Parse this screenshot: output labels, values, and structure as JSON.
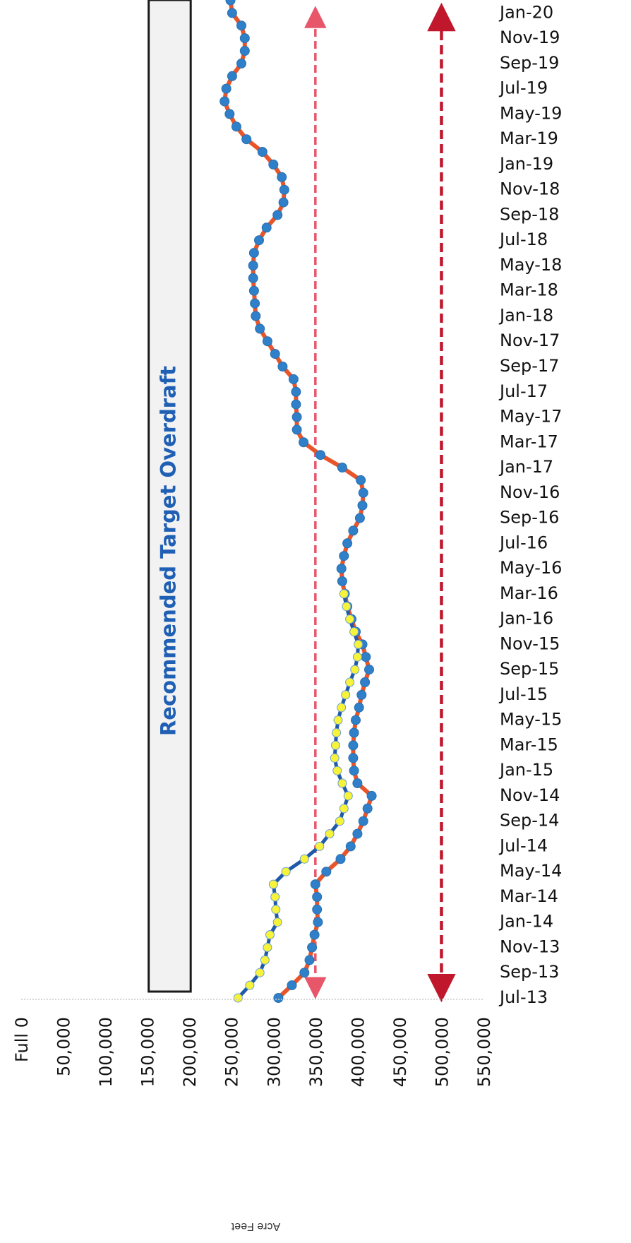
{
  "chart_data": {
    "type": "line",
    "orientation": "rotated-90",
    "ylabel": "Acre Feet",
    "value_ticks": [
      "Full   0",
      "50,000",
      "100,000",
      "150,000",
      "200,000",
      "250,000",
      "300,000",
      "350,000",
      "400,000",
      "450,000",
      "500,000",
      "550,000"
    ],
    "value_range": [
      0,
      550000
    ],
    "date_ticks": [
      "Jul-13",
      "Sep-13",
      "Nov-13",
      "Jan-14",
      "Mar-14",
      "May-14",
      "Jul-14",
      "Sep-14",
      "Nov-14",
      "Jan-15",
      "Mar-15",
      "May-15",
      "Jul-15",
      "Sep-15",
      "Nov-15",
      "Jan-16",
      "Mar-16",
      "May-16",
      "Jul-16",
      "Sep-16",
      "Nov-16",
      "Jan-17",
      "Mar-17",
      "May-17",
      "Jul-17",
      "Sep-17",
      "Nov-17",
      "Jan-18",
      "Mar-18",
      "May-18",
      "Jul-18",
      "Sep-18",
      "Nov-18",
      "Jan-19",
      "Mar-19",
      "May-19",
      "Jul-19",
      "Sep-19",
      "Nov-19",
      "Jan-20"
    ],
    "band": {
      "label": "Recommended Target Overdraft",
      "range": [
        150000,
        200000
      ],
      "fill": "#f2f2f2",
      "label_color": "#1f5fb4"
    },
    "reference_lines": [
      {
        "value": 350000,
        "color": "#e8566a",
        "style": "dashed-double-arrow"
      },
      {
        "value": 500000,
        "color": "#c0172d",
        "style": "dashed-double-arrow"
      }
    ],
    "series": [
      {
        "color": "#e8552a",
        "marker_color": "#2f80c8",
        "points": [
          [
            "Jul-13",
            306000
          ],
          [
            "Aug-13",
            322000
          ],
          [
            "Sep-13",
            337000
          ],
          [
            "Oct-13",
            343000
          ],
          [
            "Nov-13",
            346000
          ],
          [
            "Dec-13",
            349000
          ],
          [
            "Jan-14",
            353000
          ],
          [
            "Feb-14",
            352000
          ],
          [
            "Mar-14",
            352000
          ],
          [
            "Apr-14",
            350000
          ],
          [
            "May-14",
            363000
          ],
          [
            "Jun-14",
            380000
          ],
          [
            "Jul-14",
            392000
          ],
          [
            "Aug-14",
            400000
          ],
          [
            "Sep-14",
            407000
          ],
          [
            "Oct-14",
            412000
          ],
          [
            "Nov-14",
            417000
          ],
          [
            "Dec-14",
            400000
          ],
          [
            "Jan-15",
            396000
          ],
          [
            "Feb-15",
            395000
          ],
          [
            "Mar-15",
            395000
          ],
          [
            "Apr-15",
            396000
          ],
          [
            "May-15",
            398000
          ],
          [
            "Jun-15",
            402000
          ],
          [
            "Jul-15",
            405000
          ],
          [
            "Aug-15",
            409000
          ],
          [
            "Sep-15",
            414000
          ],
          [
            "Oct-15",
            410000
          ],
          [
            "Nov-15",
            406000
          ],
          [
            "Dec-15",
            398000
          ],
          [
            "Jan-16",
            393000
          ],
          [
            "Feb-16",
            388000
          ],
          [
            "Mar-16",
            385000
          ],
          [
            "Apr-16",
            382000
          ],
          [
            "May-16",
            381000
          ],
          [
            "Jun-16",
            384000
          ],
          [
            "Jul-16",
            388000
          ],
          [
            "Aug-16",
            395000
          ],
          [
            "Sep-16",
            403000
          ],
          [
            "Oct-16",
            406000
          ],
          [
            "Nov-16",
            407000
          ],
          [
            "Dec-16",
            404000
          ],
          [
            "Jan-17",
            382000
          ],
          [
            "Feb-17",
            356000
          ],
          [
            "Mar-17",
            336000
          ],
          [
            "Apr-17",
            328000
          ],
          [
            "May-17",
            328000
          ],
          [
            "Jun-17",
            327000
          ],
          [
            "Jul-17",
            327000
          ],
          [
            "Aug-17",
            324000
          ],
          [
            "Sep-17",
            311000
          ],
          [
            "Oct-17",
            302000
          ],
          [
            "Nov-17",
            293000
          ],
          [
            "Dec-17",
            284000
          ],
          [
            "Jan-18",
            279000
          ],
          [
            "Feb-18",
            278000
          ],
          [
            "Mar-18",
            277000
          ],
          [
            "Apr-18",
            276000
          ],
          [
            "May-18",
            276000
          ],
          [
            "Jun-18",
            277000
          ],
          [
            "Jul-18",
            283000
          ],
          [
            "Aug-18",
            292000
          ],
          [
            "Sep-18",
            305000
          ],
          [
            "Oct-18",
            312000
          ],
          [
            "Nov-18",
            313000
          ],
          [
            "Dec-18",
            310000
          ],
          [
            "Jan-19",
            300000
          ],
          [
            "Feb-19",
            287000
          ],
          [
            "Mar-19",
            268000
          ],
          [
            "Apr-19",
            256000
          ],
          [
            "May-19",
            248000
          ],
          [
            "Jun-19",
            242000
          ],
          [
            "Jul-19",
            244000
          ],
          [
            "Aug-19",
            251000
          ],
          [
            "Sep-19",
            262000
          ],
          [
            "Oct-19",
            266000
          ],
          [
            "Nov-19",
            266000
          ],
          [
            "Dec-19",
            262000
          ],
          [
            "Jan-20",
            251000
          ],
          [
            "Feb-20",
            249000
          ]
        ]
      },
      {
        "color": "#1f5aa8",
        "marker_color": "#f7f23a",
        "points": [
          [
            "Jul-13",
            258000
          ],
          [
            "Aug-13",
            272000
          ],
          [
            "Sep-13",
            284000
          ],
          [
            "Oct-13",
            290000
          ],
          [
            "Nov-13",
            293000
          ],
          [
            "Dec-13",
            296000
          ],
          [
            "Jan-14",
            305000
          ],
          [
            "Feb-14",
            303000
          ],
          [
            "Mar-14",
            302000
          ],
          [
            "Apr-14",
            300000
          ],
          [
            "May-14",
            315000
          ],
          [
            "Jun-14",
            337000
          ],
          [
            "Jul-14",
            355000
          ],
          [
            "Aug-14",
            367000
          ],
          [
            "Sep-14",
            379000
          ],
          [
            "Oct-14",
            384000
          ],
          [
            "Nov-14",
            389000
          ],
          [
            "Dec-14",
            382000
          ],
          [
            "Jan-15",
            376000
          ],
          [
            "Feb-15",
            373000
          ],
          [
            "Mar-15",
            374000
          ],
          [
            "Apr-15",
            375000
          ],
          [
            "May-15",
            377000
          ],
          [
            "Jun-15",
            381000
          ],
          [
            "Jul-15",
            386000
          ],
          [
            "Aug-15",
            391000
          ],
          [
            "Sep-15",
            397000
          ],
          [
            "Oct-15",
            400000
          ],
          [
            "Nov-15",
            401000
          ],
          [
            "Dec-15",
            396000
          ],
          [
            "Jan-16",
            391000
          ],
          [
            "Feb-16",
            387000
          ],
          [
            "Mar-16",
            384000
          ]
        ]
      }
    ]
  }
}
